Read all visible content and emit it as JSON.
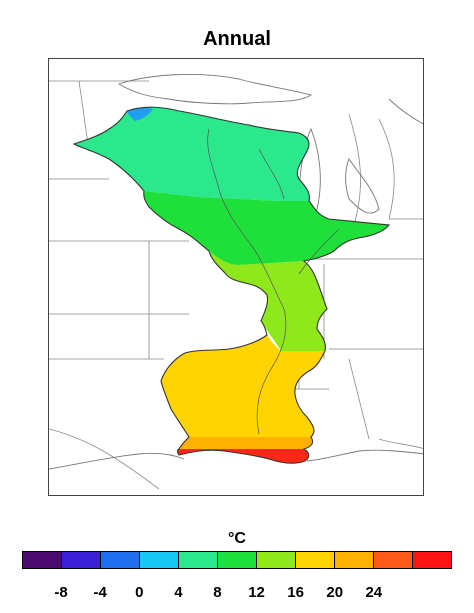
{
  "title": "Annual",
  "unit_label": "°C",
  "colorbar": {
    "colors": [
      "#4b0a6e",
      "#3a1fd6",
      "#1f6ff0",
      "#17c9f2",
      "#2be88c",
      "#1fe03a",
      "#8ee81c",
      "#ffd400",
      "#ffb000",
      "#ff5a1a",
      "#ff1414"
    ],
    "tick_labels": [
      "-8",
      "-4",
      "0",
      "4",
      "8",
      "12",
      "16",
      "20",
      "24"
    ]
  },
  "map": {
    "region_colors": {
      "cold_patch": "#1f9ff0",
      "north": "#2be88c",
      "mid": "#1fe03a",
      "lower_mid": "#8ee81c",
      "south": "#ffd400",
      "warm_south": "#ffb000",
      "coast": "#ff2814"
    }
  }
}
